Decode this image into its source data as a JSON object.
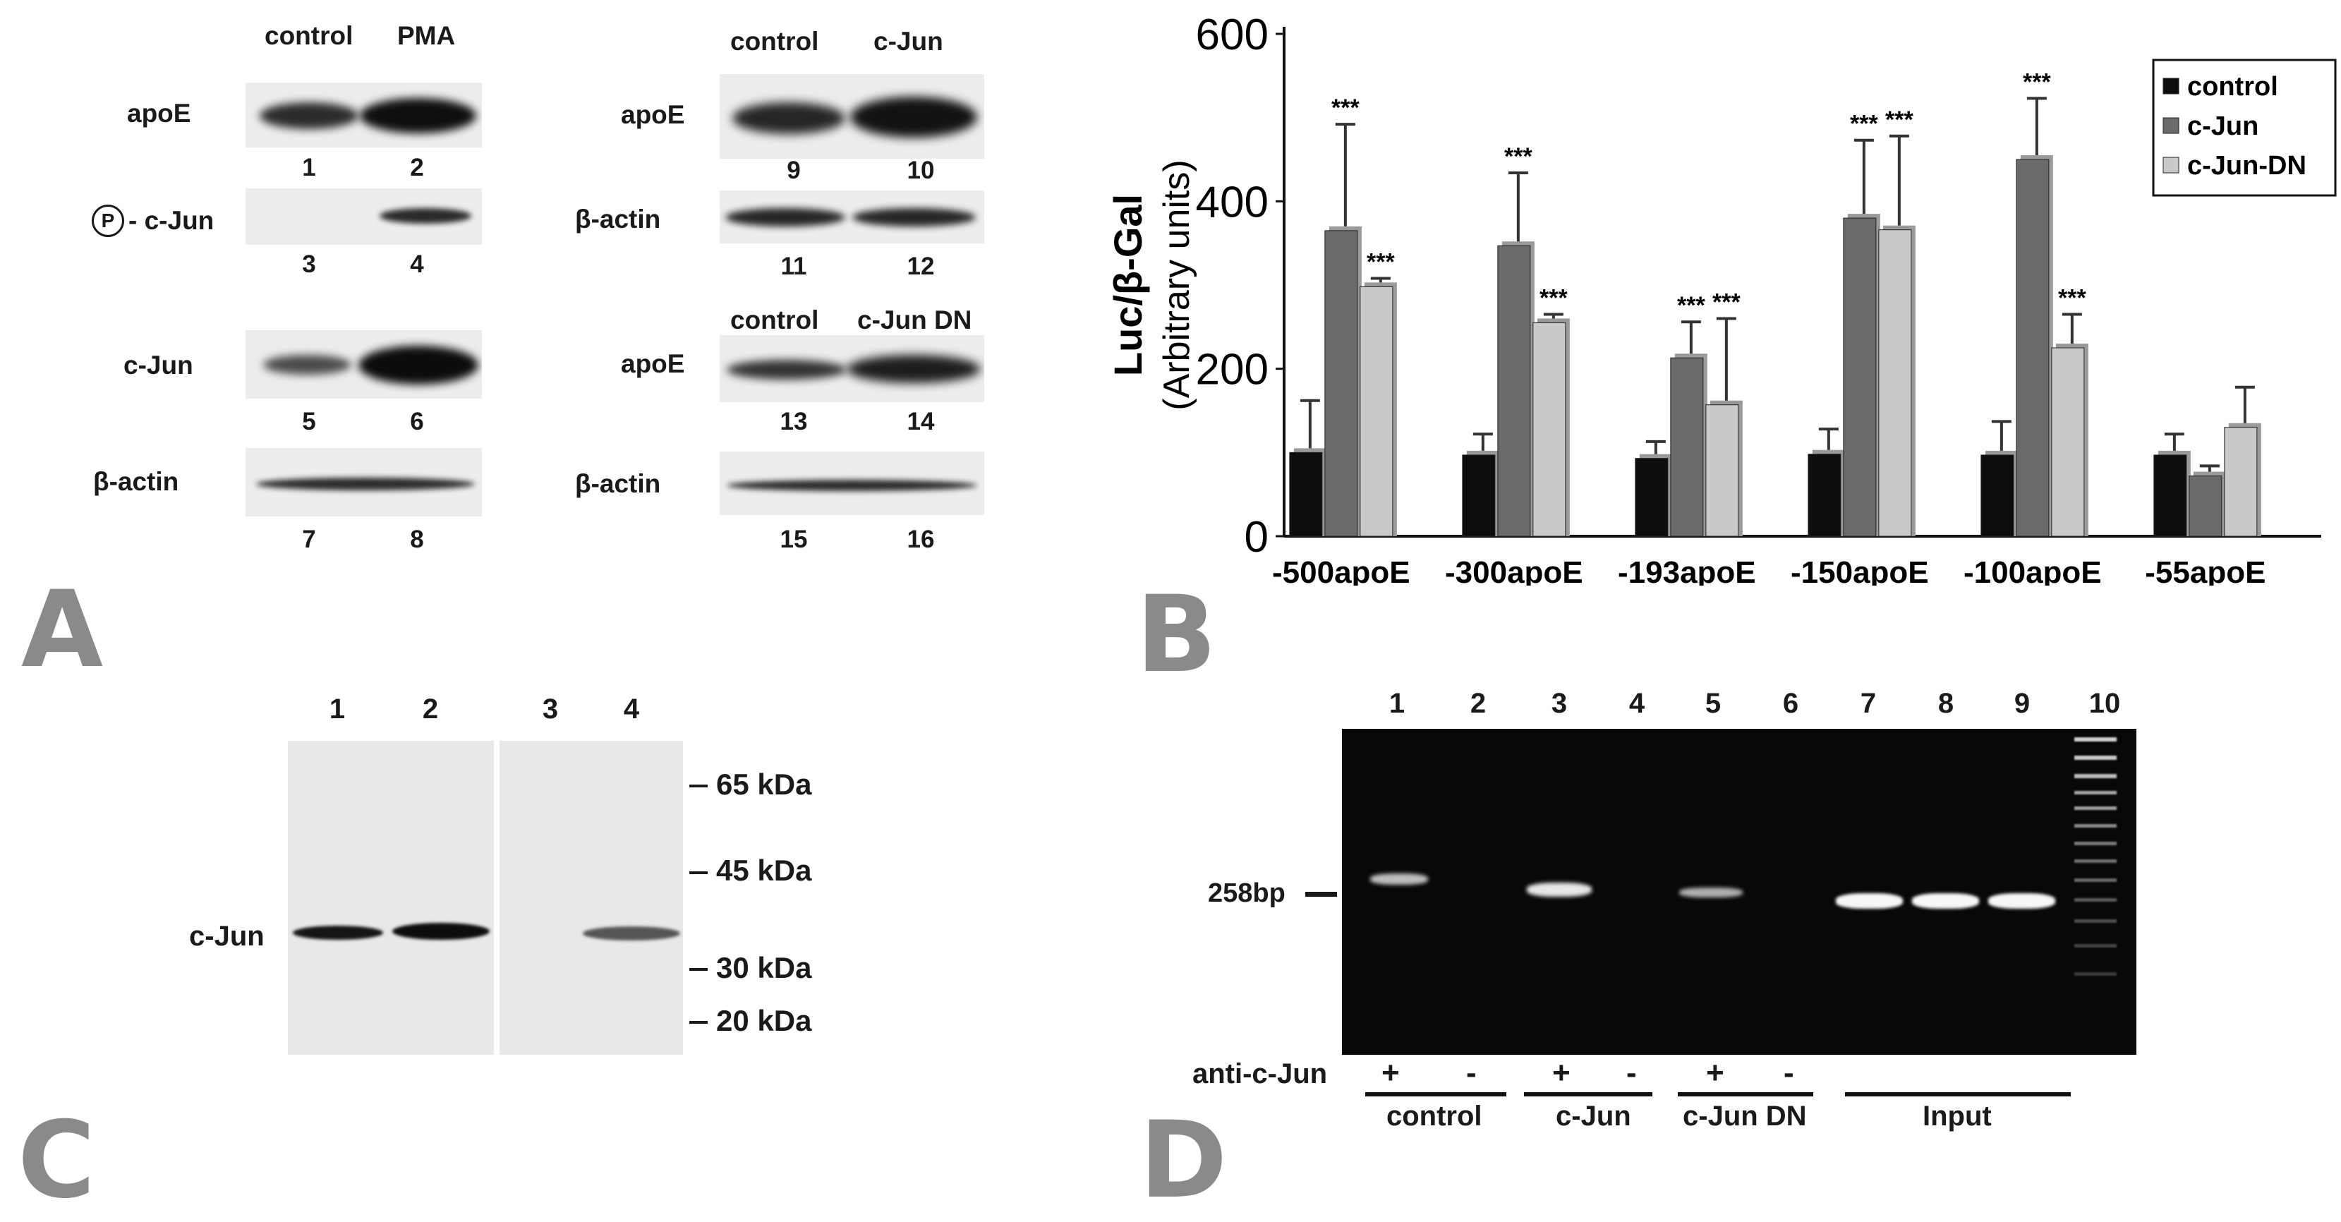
{
  "panel_labels": {
    "a": "A",
    "b": "B",
    "c": "C",
    "d": "D"
  },
  "panel_a": {
    "left": {
      "col_headers": [
        "control",
        "PMA"
      ],
      "rows": [
        {
          "label": "apoE",
          "lanes": [
            "1",
            "2"
          ]
        },
        {
          "label": "- c-Jun",
          "phospho_symbol": "P",
          "lanes": [
            "3",
            "4"
          ]
        },
        {
          "label": "c-Jun",
          "lanes": [
            "5",
            "6"
          ]
        },
        {
          "label": "β-actin",
          "lanes": [
            "7",
            "8"
          ]
        }
      ]
    },
    "right_top": {
      "col_headers": [
        "control",
        "c-Jun"
      ],
      "rows": [
        {
          "label": "apoE",
          "lanes": [
            "9",
            "10"
          ]
        },
        {
          "label": "β-actin",
          "lanes": [
            "11",
            "12"
          ]
        }
      ]
    },
    "right_bottom": {
      "col_headers": [
        "control",
        "c-Jun DN"
      ],
      "rows": [
        {
          "label": "apoE",
          "lanes": [
            "13",
            "14"
          ]
        },
        {
          "label": "β-actin",
          "lanes": [
            "15",
            "16"
          ]
        }
      ]
    }
  },
  "chart_data": {
    "type": "bar",
    "ylabel_bold": "Luc/β-Gal",
    "ylabel": "(Arbitrary units)",
    "ylim": [
      0,
      600
    ],
    "yticks": [
      "0",
      "200",
      "400",
      "600"
    ],
    "categories": [
      "-500apoE",
      "-300apoE",
      "-193apoE",
      "-150apoE",
      "-100apoE",
      "-55apoE"
    ],
    "series": [
      {
        "name": "control",
        "color": "#0d0d0d",
        "values": [
          100,
          97,
          93,
          98,
          97,
          97
        ],
        "errors": [
          62,
          25,
          20,
          30,
          40,
          25
        ],
        "sig": [
          "",
          "",
          "",
          "",
          "",
          ""
        ]
      },
      {
        "name": "c-Jun",
        "color": "#6a6a6a",
        "values": [
          365,
          347,
          213,
          380,
          450,
          72
        ],
        "errors": [
          127,
          87,
          43,
          93,
          73,
          12
        ],
        "sig": [
          "***",
          "***",
          "***",
          "***",
          "***",
          ""
        ]
      },
      {
        "name": "c-Jun-DN",
        "color": "#c9c9c9",
        "values": [
          298,
          255,
          157,
          366,
          225,
          130
        ],
        "errors": [
          10,
          10,
          103,
          112,
          40,
          48
        ],
        "sig": [
          "***",
          "***",
          "***",
          "***",
          "***",
          ""
        ]
      }
    ],
    "legend_position": "top-right",
    "grid": false
  },
  "panel_c": {
    "lanes": [
      "1",
      "2",
      "3",
      "4"
    ],
    "band_label": "c-Jun",
    "markers": [
      "65 kDa",
      "45 kDa",
      "30 kDa",
      "20 kDa"
    ]
  },
  "panel_d": {
    "lanes": [
      "1",
      "2",
      "3",
      "4",
      "5",
      "6",
      "7",
      "8",
      "9",
      "10"
    ],
    "size_label": "258bp",
    "antibody_label": "anti-c-Jun",
    "signs": [
      "+",
      "-",
      "+",
      "-",
      "+",
      "-"
    ],
    "groups": [
      "control",
      "c-Jun",
      "c-Jun DN",
      "Input"
    ]
  }
}
